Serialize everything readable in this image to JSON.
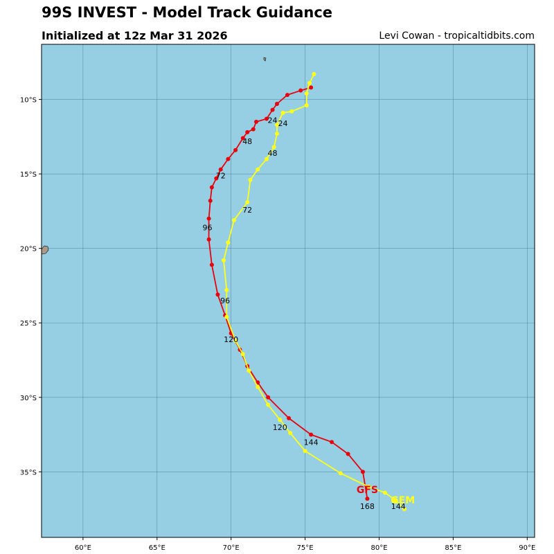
{
  "header": {
    "title": "99S INVEST - Model Track Guidance",
    "subtitle": "Initialized at 12z Mar 31 2026",
    "credit": "Levi Cowan - tropicaltidbits.com"
  },
  "colors": {
    "ocean": "#96cfe4",
    "grid": "#4f7f94",
    "land": "#a89a86",
    "gfs": "#e8000b",
    "gem": "#ffff1a"
  },
  "chart_data": {
    "type": "line",
    "xlim": [
      57.2,
      90.5
    ],
    "ylim": [
      -39.4,
      -6.3
    ],
    "grid": true,
    "x_ticks": [
      60,
      65,
      70,
      75,
      80,
      85,
      90
    ],
    "x_tick_labels": [
      "60°E",
      "65°E",
      "70°E",
      "75°E",
      "80°E",
      "85°E",
      "90°E"
    ],
    "y_ticks": [
      -10,
      -15,
      -20,
      -25,
      -30,
      -35
    ],
    "y_tick_labels": [
      "10°S",
      "15°S",
      "20°S",
      "25°S",
      "30°S",
      "35°S"
    ],
    "series": [
      {
        "name": "GFS",
        "color": "#e8000b",
        "points": [
          [
            75.4,
            -9.2
          ],
          [
            74.7,
            -9.4
          ],
          [
            73.8,
            -9.7
          ],
          [
            73.1,
            -10.3
          ],
          [
            72.8,
            -10.7
          ],
          [
            72.4,
            -11.3
          ],
          [
            71.7,
            -11.5
          ],
          [
            71.5,
            -12.0
          ],
          [
            71.1,
            -12.2
          ],
          [
            70.8,
            -12.6
          ],
          [
            70.3,
            -13.4
          ],
          [
            69.8,
            -14.0
          ],
          [
            69.3,
            -14.7
          ],
          [
            69.0,
            -15.3
          ],
          [
            68.7,
            -15.9
          ],
          [
            68.6,
            -16.8
          ],
          [
            68.5,
            -18.0
          ],
          [
            68.5,
            -19.4
          ],
          [
            68.7,
            -21.1
          ],
          [
            69.1,
            -23.1
          ],
          [
            69.6,
            -24.5
          ],
          [
            70.0,
            -25.7
          ],
          [
            70.6,
            -26.8
          ],
          [
            71.1,
            -27.9
          ],
          [
            71.8,
            -29.0
          ],
          [
            72.5,
            -30.0
          ],
          [
            73.9,
            -31.4
          ],
          [
            75.4,
            -32.5
          ],
          [
            76.8,
            -33.0
          ],
          [
            77.9,
            -33.8
          ],
          [
            78.9,
            -35.0
          ],
          [
            79.2,
            -36.8
          ]
        ],
        "hour_labels": [
          {
            "text": "24",
            "lon": 72.8,
            "lat": -11.4
          },
          {
            "text": "48",
            "lon": 71.1,
            "lat": -12.8
          },
          {
            "text": "72",
            "lon": 69.3,
            "lat": -15.1
          },
          {
            "text": "96",
            "lon": 68.4,
            "lat": -18.6
          },
          {
            "text": "120",
            "lon": 70.0,
            "lat": -26.1
          },
          {
            "text": "144",
            "lon": 75.4,
            "lat": -33.0
          },
          {
            "text": "168",
            "lon": 79.2,
            "lat": -37.3
          }
        ],
        "end_label": {
          "text": "GFS",
          "lon": 79.2,
          "lat": -36.2
        }
      },
      {
        "name": "GEM",
        "color": "#ffff1a",
        "points": [
          [
            75.6,
            -8.3
          ],
          [
            75.3,
            -8.9
          ],
          [
            75.1,
            -9.6
          ],
          [
            75.1,
            -10.4
          ],
          [
            74.1,
            -10.8
          ],
          [
            73.5,
            -10.9
          ],
          [
            73.1,
            -11.7
          ],
          [
            73.1,
            -12.3
          ],
          [
            72.9,
            -13.2
          ],
          [
            72.4,
            -14.0
          ],
          [
            71.8,
            -14.7
          ],
          [
            71.3,
            -15.4
          ],
          [
            71.1,
            -16.9
          ],
          [
            70.2,
            -18.1
          ],
          [
            69.8,
            -19.6
          ],
          [
            69.5,
            -20.8
          ],
          [
            69.7,
            -22.8
          ],
          [
            69.7,
            -24.6
          ],
          [
            70.3,
            -26.2
          ],
          [
            70.8,
            -27.1
          ],
          [
            71.2,
            -28.2
          ],
          [
            71.8,
            -29.3
          ],
          [
            72.5,
            -30.5
          ],
          [
            73.3,
            -31.5
          ],
          [
            74.0,
            -32.4
          ],
          [
            75.0,
            -33.6
          ],
          [
            77.4,
            -35.1
          ],
          [
            79.3,
            -36.0
          ],
          [
            80.4,
            -36.4
          ],
          [
            81.1,
            -36.9
          ],
          [
            81.7,
            -37.5
          ]
        ],
        "hour_labels": [
          {
            "text": "24",
            "lon": 73.5,
            "lat": -11.6
          },
          {
            "text": "48",
            "lon": 72.8,
            "lat": -13.6
          },
          {
            "text": "72",
            "lon": 71.1,
            "lat": -17.4
          },
          {
            "text": "96",
            "lon": 69.6,
            "lat": -23.5
          },
          {
            "text": "120",
            "lon": 73.3,
            "lat": -32.0
          },
          {
            "text": "144",
            "lon": 81.3,
            "lat": -37.3
          }
        ],
        "end_label": {
          "text": "GEM",
          "lon": 81.6,
          "lat": -36.9
        }
      }
    ]
  }
}
